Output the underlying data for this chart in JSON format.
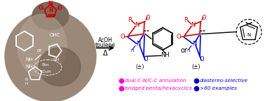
{
  "figure_width": 3.78,
  "figure_height": 1.44,
  "dpi": 100,
  "rock_color1": "#9b8878",
  "rock_color2": "#7a6a5a",
  "rock_color3": "#b8a898",
  "rock_color4": "#6a5a4a",
  "red": "#cc0000",
  "blue": "#0000cc",
  "black": "#000000",
  "white": "#ffffff",
  "magenta": "#ff00cc",
  "bullet_blue": "#0000cc",
  "arrow_conditions": [
    "AcOH",
    "toulene",
    "Δ"
  ],
  "bullet_left": [
    "dual C-N/C-C annulation",
    "bridged penta/hexacyclics"
  ],
  "bullet_right": [
    "diastereo-selective",
    ">60 examples"
  ]
}
